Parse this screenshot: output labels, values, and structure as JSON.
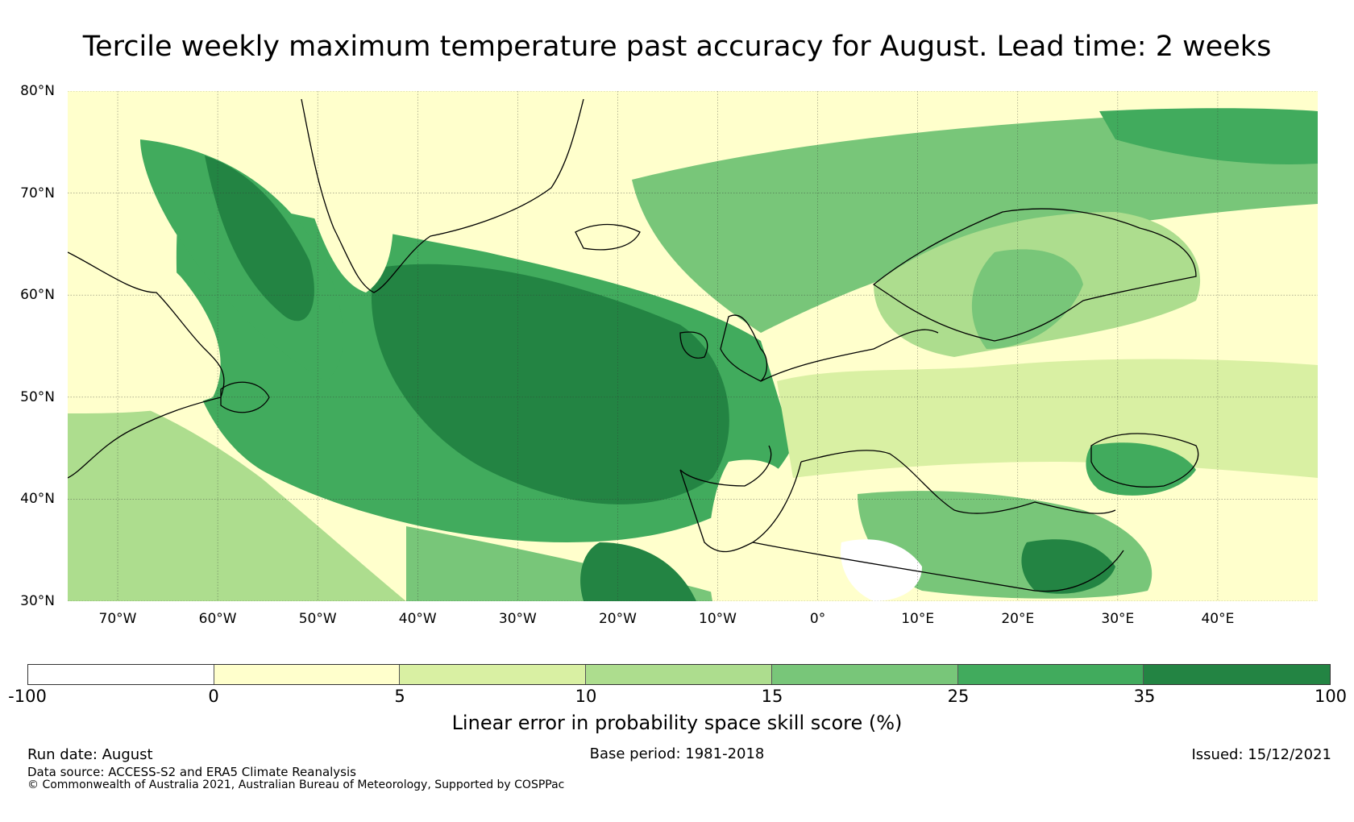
{
  "title": "Tercile weekly maximum temperature past accuracy for August. Lead time: 2 weeks",
  "map": {
    "lat_range": [
      30,
      80
    ],
    "lon_range": [
      -75,
      50
    ],
    "lat_ticks": [
      "80°N",
      "70°N",
      "60°N",
      "50°N",
      "40°N",
      "30°N"
    ],
    "lat_values": [
      80,
      70,
      60,
      50,
      40,
      30
    ],
    "lon_ticks": [
      "70°W",
      "60°W",
      "50°W",
      "40°W",
      "30°W",
      "20°W",
      "10°W",
      "0°",
      "10°E",
      "20°E",
      "30°E",
      "40°E"
    ],
    "lon_values": [
      -70,
      -60,
      -50,
      -40,
      -30,
      -20,
      -10,
      0,
      10,
      20,
      30,
      40
    ],
    "gridlines": true
  },
  "colorbar": {
    "label": "Linear error in probability space skill score (%)",
    "ticks": [
      "-100",
      "0",
      "5",
      "10",
      "15",
      "25",
      "35",
      "100"
    ],
    "colors": [
      "#ffffff",
      "#ffffcc",
      "#d9f0a3",
      "#addd8e",
      "#78c679",
      "#41ab5d",
      "#238443"
    ]
  },
  "footer": {
    "run_date": "Run date: August",
    "base_period": "Base period: 1981-2018",
    "issued": "Issued: 15/12/2021",
    "data_source": "Data source: ACCESS-S2 and ERA5 Climate Reanalysis",
    "copyright": "© Commonwealth of Australia 2021, Australian Bureau of Meteorology, Supported by COSPPac"
  }
}
